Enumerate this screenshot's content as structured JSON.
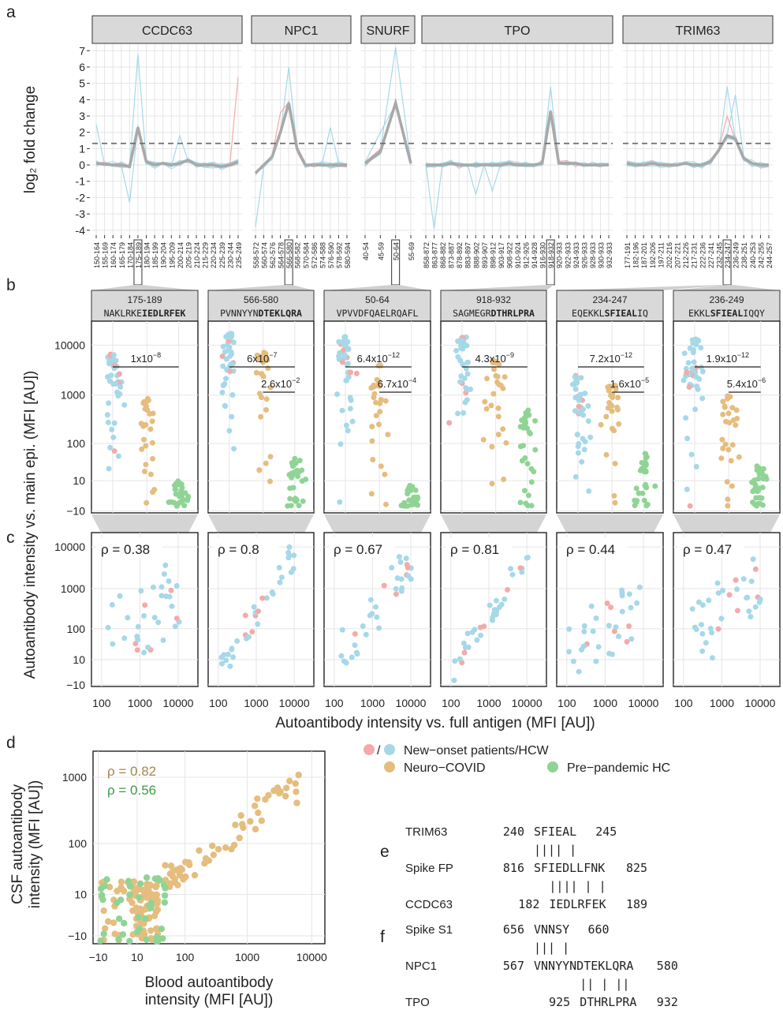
{
  "panel_labels": [
    "a",
    "b",
    "c",
    "d",
    "e",
    "f"
  ],
  "colors": {
    "new_onset_pink": "#f4aaa8",
    "hcw_blue": "#a6d8e8",
    "neuro_covid": "#e5bd7e",
    "prepandemic_hc": "#8fd494",
    "mean_line": "#a9a9a9",
    "strip_fill": "#d9d9d9",
    "grid": "#e5e5e5",
    "rho_neuro": "#a8844a",
    "rho_hc": "#3c9b48"
  },
  "chart_data": [
    {
      "id": "a",
      "type": "line",
      "ylabel": "log₂ fold change",
      "ylim": [
        -4.3,
        7.4
      ],
      "yticks": [
        -4,
        -3,
        -2,
        -1,
        0,
        1,
        2,
        3,
        4,
        5,
        6,
        7
      ],
      "threshold": 1.32,
      "facets": [
        {
          "name": "CCDC63",
          "highlight": "175-189",
          "x": [
            "150-164",
            "155-169",
            "160-174",
            "165-179",
            "170-184",
            "175-189",
            "180-194",
            "185-199",
            "190-204",
            "195-209",
            "200-214",
            "205-219",
            "210-224",
            "215-229",
            "220-234",
            "225-239",
            "230-244",
            "235-249"
          ],
          "mean": [
            0.1,
            0.05,
            0.0,
            0.0,
            -0.1,
            2.3,
            0.2,
            0.0,
            0.1,
            0.0,
            0.1,
            0.3,
            0.0,
            0.0,
            0.0,
            -0.1,
            0.0,
            0.2
          ],
          "spikes": [
            {
              "idx": 5,
              "max": 6.8
            },
            {
              "idx": 0,
              "max": 2.5
            },
            {
              "idx": 4,
              "min": -2.3
            },
            {
              "idx": 10,
              "max": 1.8
            },
            {
              "idx": 17,
              "max": 5.4,
              "pink": true
            }
          ]
        },
        {
          "name": "NPC1",
          "highlight": "566-580",
          "x": [
            "558-572",
            "560-574",
            "562-576",
            "564-578",
            "566-580",
            "568-582",
            "570-584",
            "572-586",
            "574-588",
            "576-590",
            "578-592",
            "580-594"
          ],
          "mean": [
            -0.5,
            0.0,
            0.5,
            2.0,
            3.8,
            1.0,
            0.0,
            0.0,
            0.0,
            0.0,
            0.0,
            0.0
          ],
          "spikes": [
            {
              "idx": 4,
              "max": 6.0
            },
            {
              "idx": 0,
              "min": -3.8
            },
            {
              "idx": 9,
              "max": 2.3
            },
            {
              "idx": 3,
              "max": 3.2,
              "pink": true
            }
          ]
        },
        {
          "name": "SNURF",
          "highlight": "50-64",
          "x": [
            "40-54",
            "45-59",
            "50-64",
            "55-69"
          ],
          "mean": [
            0.1,
            0.8,
            3.8,
            0.1
          ],
          "spikes": [
            {
              "idx": 2,
              "max": 7.2
            },
            {
              "idx": 1,
              "max": 2.0
            }
          ]
        },
        {
          "name": "TPO",
          "highlight": "918-932",
          "x": [
            "858-872",
            "863-877",
            "868-882",
            "873-887",
            "878-892",
            "883-897",
            "888-902",
            "893-907",
            "898-912",
            "903-917",
            "908-922",
            "910-924",
            "912-926",
            "914-928",
            "916-930",
            "918-932",
            "920-933",
            "922-933",
            "924-933",
            "926-933",
            "928-933",
            "930-933",
            "932-933"
          ],
          "mean": [
            0.0,
            0.0,
            0.0,
            0.1,
            0.0,
            0.0,
            0.0,
            0.0,
            0.0,
            0.0,
            0.1,
            0.0,
            0.0,
            0.0,
            0.1,
            3.3,
            0.1,
            0.1,
            0.1,
            0.0,
            0.0,
            0.0,
            0.0
          ],
          "spikes": [
            {
              "idx": 15,
              "max": 4.8
            },
            {
              "idx": 1,
              "min": -3.9
            },
            {
              "idx": 6,
              "min": -1.8
            },
            {
              "idx": 8,
              "min": -1.6
            }
          ]
        },
        {
          "name": "TRIM63",
          "highlight": "234-247",
          "x": [
            "177-191",
            "182-196",
            "187-201",
            "192-206",
            "197-211",
            "202-216",
            "207-221",
            "212-226",
            "217-231",
            "222-236",
            "227-241",
            "232-245",
            "234-247",
            "236-249",
            "238-251",
            "240-253",
            "242-255",
            "244-257"
          ],
          "mean": [
            0.1,
            0.0,
            0.0,
            0.1,
            0.0,
            0.0,
            0.0,
            0.1,
            0.0,
            0.0,
            0.2,
            0.9,
            1.8,
            1.6,
            0.4,
            0.1,
            0.0,
            0.0
          ],
          "spikes": [
            {
              "idx": 12,
              "max": 4.8
            },
            {
              "idx": 13,
              "max": 4.3
            },
            {
              "idx": 12,
              "max": 3.0,
              "pink": true
            }
          ]
        }
      ]
    },
    {
      "id": "b",
      "type": "scatter",
      "ylabel": "Autoantibody intensity vs. main epi. (MFI [AU])",
      "yticks": [
        "10000",
        "1000",
        "100",
        "10",
        "−10"
      ],
      "facets": [
        {
          "range": "175-189",
          "plain": "NAKLRKE",
          "bold": "IEDLRFEK",
          "after": "",
          "p_all": "1x10",
          "p_all_exp": "−8",
          "p_new": "",
          "p_new_exp": "",
          "max_new": 7000,
          "max_neuro": 900,
          "max_hc": 10
        },
        {
          "range": "566-580",
          "plain": "PVNNYYN",
          "bold": "DTEKLQRA",
          "after": "",
          "p_all": "6x10",
          "p_all_exp": "−7",
          "p_new": "2.6x10",
          "p_new_exp": "−2",
          "max_new": 18000,
          "max_neuro": 8000,
          "max_hc": 50
        },
        {
          "range": "50-64",
          "plain": "VPVVDFQAELRQAFL",
          "bold": "",
          "after": "",
          "p_all": "6.4x10",
          "p_all_exp": "−12",
          "p_new": "6.7x10",
          "p_new_exp": "−4",
          "max_new": 15000,
          "max_neuro": 4000,
          "max_hc": 6
        },
        {
          "range": "918-932",
          "plain": "SAGMEGR",
          "bold": "DTHRLPRA",
          "after": "",
          "p_all": "4.3x10",
          "p_all_exp": "−9",
          "p_new": "",
          "p_new_exp": "",
          "max_new": 15000,
          "max_neuro": 5000,
          "max_hc": 500
        },
        {
          "range": "234-247",
          "plain": "EQEKKL",
          "bold": "SFIEAL",
          "after": "IQ",
          "p_all": "7.2x10",
          "p_all_exp": "−12",
          "p_new": "1.6x10",
          "p_new_exp": "−5",
          "max_new": 2500,
          "max_neuro": 1800,
          "max_hc": 60
        },
        {
          "range": "236-249",
          "plain": "EKKL",
          "bold": "SFIEAL",
          "after": "IQQY",
          "p_all": "1.9x10",
          "p_all_exp": "−12",
          "p_new": "5.4x10",
          "p_new_exp": "−6",
          "max_new": 15000,
          "max_neuro": 1000,
          "max_hc": 35
        }
      ]
    },
    {
      "id": "c",
      "type": "scatter",
      "xlabel": "Autoantibody intensity vs. full antigen (MFI [AU])",
      "xticks": [
        "100",
        "1000",
        "10000"
      ],
      "yticks": [
        "10000",
        "1000",
        "100",
        "10",
        "−10"
      ],
      "facets": [
        {
          "rho": "ρ = 0.38",
          "r": 0.38
        },
        {
          "rho": "ρ = 0.8",
          "r": 0.8
        },
        {
          "rho": "ρ = 0.67",
          "r": 0.67
        },
        {
          "rho": "ρ = 0.81",
          "r": 0.81
        },
        {
          "rho": "ρ = 0.44",
          "r": 0.44
        },
        {
          "rho": "ρ = 0.47",
          "r": 0.47
        }
      ]
    },
    {
      "id": "d",
      "type": "scatter",
      "xlabel_lines": [
        "Blood autoantibody",
        "intensity (MFI [AU])"
      ],
      "ylabel_lines": [
        "CSF autoantibody",
        "intensity (MFI [AU])"
      ],
      "xticks": [
        "−10",
        "10",
        "100",
        "1000",
        "10000"
      ],
      "yticks": [
        "1000",
        "100",
        "10",
        "−10"
      ],
      "rho_neuro": "ρ = 0.82",
      "rho_hc": "ρ = 0.56"
    }
  ],
  "legend": {
    "slash": "/",
    "items": [
      {
        "label": "New−onset patients/HCW"
      },
      {
        "label": "Neuro−COVID"
      },
      {
        "label": "Pre−pandemic HC"
      }
    ]
  },
  "alignments": {
    "e": [
      {
        "name": "TRIM63",
        "start": "240",
        "seq": "SFIEAL",
        "end": "245",
        "offset": 0
      },
      {
        "bars": "|||| |",
        "offset": 0
      },
      {
        "name": "Spike FP",
        "start": "816",
        "seq": "SFIEDLLFNK",
        "end": "825",
        "offset": 0
      },
      {
        "bars": "|||| | |",
        "offset": 2
      },
      {
        "name": "CCDC63",
        "start": "182",
        "seq": "IEDLRFEK",
        "end": "189",
        "offset": 2
      }
    ],
    "f": [
      {
        "name": "Spike S1",
        "start": "656",
        "seq": "VNNSY",
        "end": "660",
        "offset": 0
      },
      {
        "bars": "||| |",
        "offset": 0
      },
      {
        "name": "NPC1",
        "start": "567",
        "seq": "VNNYYNDTEKLQRA",
        "end": "580",
        "offset": 0
      },
      {
        "bars": "||  | ||",
        "offset": 6
      },
      {
        "name": "TPO",
        "start": "925",
        "seq": "DTHRLPRA",
        "end": "932",
        "offset": 6
      }
    ]
  }
}
